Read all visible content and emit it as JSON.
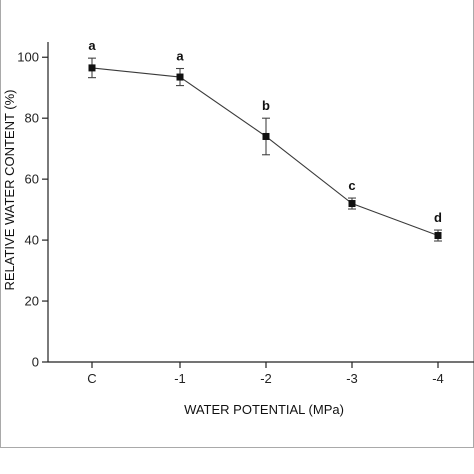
{
  "chart_data": {
    "type": "line",
    "title": "",
    "xlabel": "WATER POTENTIAL (MPa)",
    "ylabel": "RELATIVE WATER CONTENT (%)",
    "categories": [
      "C",
      "-1",
      "-2",
      "-3",
      "-4"
    ],
    "ylim": [
      0,
      105
    ],
    "yticks": [
      0,
      20,
      40,
      60,
      80,
      100
    ],
    "ytick_labels": [
      "0",
      "20",
      "40",
      "60",
      "80",
      "100"
    ],
    "grid": false,
    "legend": "none",
    "series": [
      {
        "values": [
          96.5,
          93.5,
          74,
          52,
          41.5
        ],
        "errors": [
          3.2,
          2.8,
          6,
          1.8,
          1.8
        ],
        "labels": [
          "a",
          "a",
          "b",
          "c",
          "d"
        ]
      }
    ],
    "colors": {
      "line": "#3a3a3a",
      "marker": "#111111",
      "frame": "#a9a9a9"
    }
  }
}
